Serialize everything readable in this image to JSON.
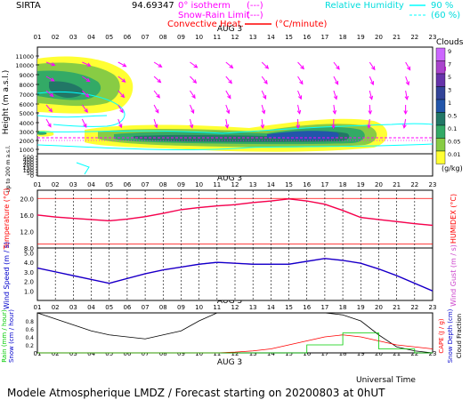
{
  "header": {
    "site": "SIRTA",
    "code": "94.69347",
    "legend_iso": "0° isotherm",
    "legend_iso_sym": "(---)",
    "legend_snow": "Snow-Rain Limit",
    "legend_snow_sym": "(---)",
    "legend_conv": "Convective Heat.",
    "legend_conv_unit": "(°C/minute)",
    "legend_rh": "Relative Humidity",
    "rh90": "90 %",
    "rh60": "(60 %)"
  },
  "day_label": "AUG  3",
  "hours": [
    "01",
    "02",
    "03",
    "04",
    "05",
    "06",
    "07",
    "08",
    "09",
    "10",
    "11",
    "12",
    "13",
    "14",
    "15",
    "16",
    "17",
    "18",
    "19",
    "20",
    "21",
    "22",
    "23"
  ],
  "colors": {
    "magenta": "#ff00ff",
    "cyan": "#00ffff",
    "red": "#ff0000",
    "blue": "#0000cc",
    "green": "#00cc00",
    "temp_line": "#ff0044"
  },
  "clouds_scale": {
    "title": "Clouds",
    "labels": [
      "9",
      "7",
      "5",
      "3",
      "1",
      "0.5",
      "0.1",
      "0.05",
      "0.01"
    ],
    "colors": [
      "#cc66ff",
      "#aa44cc",
      "#6633aa",
      "#334499",
      "#2255aa",
      "#227766",
      "#33aa66",
      "#88cc44",
      "#ffff33"
    ],
    "unit": "(g/kg)"
  },
  "panels": {
    "clouds": {
      "ylabel": "Height  (m a.s.l.)"
    },
    "low": {
      "ylabel": "Up to 200 m a.s.l."
    },
    "temp": {
      "ylabel": "Temperature (°C)",
      "ylabel2": "HUMIDEX (°C)"
    },
    "wind": {
      "ylabel": "Wind Speed (m / s)",
      "ylabel2": "Wind Gust (m / s)"
    },
    "rain": {
      "ylabel": "Rain (mm / hour)",
      "ylabel_b": "Snow (cm / hour)",
      "ylabel2": "CAPE (J / g)",
      "ylabel2_b": "Snow Depth (cm)",
      "ylabel2_c": "Cloud Fraction",
      "xlabel": "Universal Time"
    }
  },
  "footer": "Modele Atmospherique LMDZ / Forecast starting on 20200803 at 0hUT",
  "chart_data": [
    {
      "type": "heatmap",
      "title": "Clouds",
      "ylabel": "Height (m a.s.l.)",
      "yticks": [
        "11000",
        "10000",
        "9000",
        "8000",
        "7000",
        "6000",
        "5000",
        "4000",
        "3000",
        "2000",
        "1000",
        "500",
        "400",
        "300",
        "200",
        "150",
        "100",
        "50",
        "0"
      ],
      "x": [
        "01",
        "02",
        "03",
        "04",
        "05",
        "06",
        "07",
        "08",
        "09",
        "10",
        "11",
        "12",
        "13",
        "14",
        "15",
        "16",
        "17",
        "18",
        "19",
        "20",
        "21",
        "22",
        "23"
      ]
    },
    {
      "type": "line",
      "ylabel": "Temperature (°C)",
      "yticks": [
        "20.0",
        "16.0",
        "12.0",
        "8.0"
      ],
      "ylim": [
        8,
        22
      ],
      "x": [
        "01",
        "02",
        "03",
        "04",
        "05",
        "06",
        "07",
        "08",
        "09",
        "10",
        "11",
        "12",
        "13",
        "14",
        "15",
        "16",
        "17",
        "18",
        "19",
        "20",
        "21",
        "22",
        "23"
      ],
      "series": [
        {
          "values": [
            16.0,
            15.5,
            15.2,
            14.9,
            14.6,
            15.0,
            15.6,
            16.4,
            17.3,
            17.8,
            18.2,
            18.5,
            19.0,
            19.4,
            19.9,
            19.4,
            18.6,
            17.1,
            15.4,
            14.9,
            14.4,
            13.9,
            13.5
          ]
        }
      ]
    },
    {
      "type": "line",
      "ylabel": "Wind Speed (m / s)",
      "yticks": [
        "5.0",
        "4.0",
        "3.0",
        "2.0",
        "1.0"
      ],
      "ylim": [
        0,
        5
      ],
      "x": [
        "01",
        "02",
        "03",
        "04",
        "05",
        "06",
        "07",
        "08",
        "09",
        "10",
        "11",
        "12",
        "13",
        "14",
        "15",
        "16",
        "17",
        "18",
        "19",
        "20",
        "21",
        "22",
        "23"
      ],
      "series": [
        {
          "values": [
            3.4,
            3.0,
            2.6,
            2.2,
            1.8,
            2.3,
            2.8,
            3.2,
            3.5,
            3.8,
            4.0,
            3.9,
            3.8,
            3.8,
            3.8,
            4.1,
            4.4,
            4.2,
            3.9,
            3.3,
            2.6,
            1.8,
            1.0
          ]
        }
      ]
    },
    {
      "type": "line",
      "ylabel": "Rain (mm / hour)",
      "yticks": [
        "0.8",
        "0.6",
        "0.4",
        "0.2"
      ],
      "ylim": [
        0,
        1
      ],
      "x": [
        "01",
        "02",
        "03",
        "04",
        "05",
        "06",
        "07",
        "08",
        "09",
        "10",
        "11",
        "12",
        "13",
        "14",
        "15",
        "16",
        "17",
        "18",
        "19",
        "20",
        "21",
        "22",
        "23"
      ],
      "series": [
        {
          "values": [
            1.0,
            0.85,
            0.7,
            0.55,
            0.45,
            0.4,
            0.35,
            0.45,
            0.55,
            0.8,
            1.0,
            1.0,
            1.0,
            1.0,
            1.0,
            1.0,
            1.0,
            0.95,
            0.8,
            0.45,
            0.15,
            0.05,
            0.0
          ]
        },
        {
          "values": [
            0.0,
            0.0,
            0.0,
            0.0,
            0.0,
            0.0,
            0.0,
            0.0,
            0.0,
            0.0,
            0.0,
            0.02,
            0.05,
            0.1,
            0.2,
            0.3,
            0.4,
            0.45,
            0.4,
            0.3,
            0.2,
            0.15,
            0.1
          ]
        },
        {
          "values": [
            0.0,
            0.0,
            0.0,
            0.0,
            0.0,
            0.0,
            0.0,
            0.0,
            0.0,
            0.0,
            0.0,
            0.0,
            0.0,
            0.0,
            0.0,
            0.2,
            0.2,
            0.5,
            0.5,
            0.1,
            0.1,
            0.0,
            0.0
          ]
        }
      ]
    }
  ]
}
